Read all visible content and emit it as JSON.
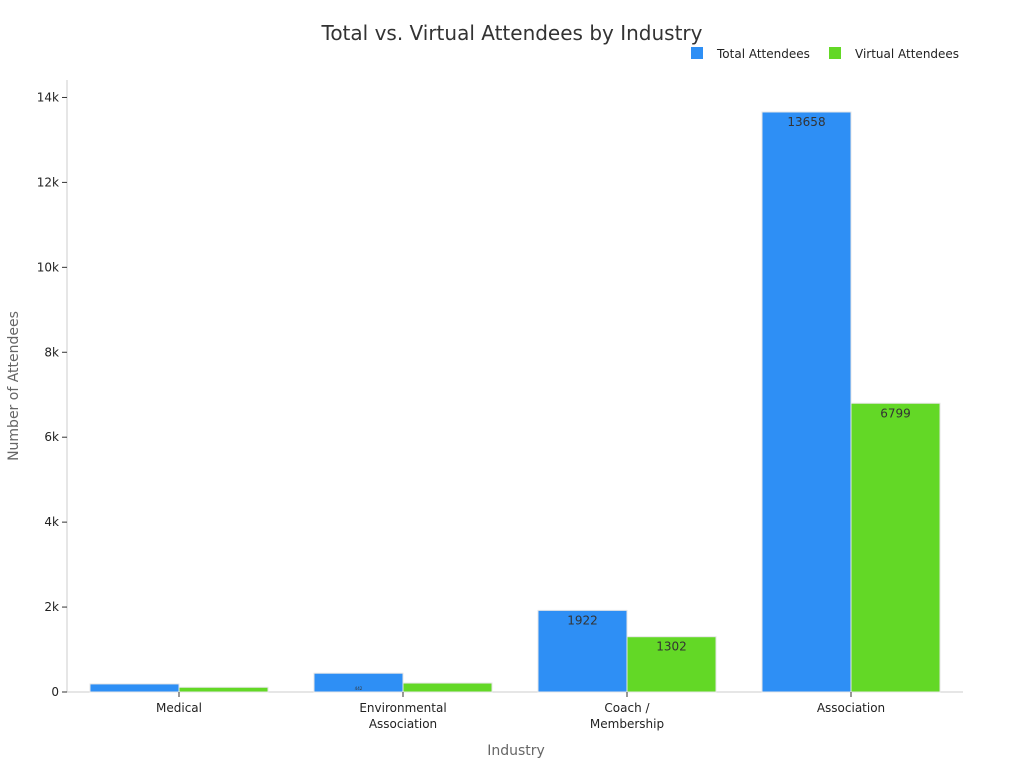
{
  "chart_data": {
    "type": "bar",
    "title": "Total vs. Virtual Attendees by Industry",
    "xlabel": "Industry",
    "ylabel": "Number of Attendees",
    "categories": [
      [
        "Medical"
      ],
      [
        "Environmental",
        "Association"
      ],
      [
        "Coach /",
        "Membership"
      ],
      [
        "Association"
      ]
    ],
    "series": [
      {
        "name": "Total Attendees",
        "color": "#2e8ff5",
        "values": [
          190,
          442,
          1922,
          13658
        ],
        "labels": [
          "",
          "442",
          "1922",
          "13658"
        ]
      },
      {
        "name": "Virtual Attendees",
        "color": "#63d826",
        "values": [
          111,
          211,
          1302,
          6799
        ],
        "labels": [
          "",
          "",
          "1302",
          "6799"
        ]
      }
    ],
    "ylim": [
      0,
      14000
    ],
    "yticks": [
      0,
      2000,
      4000,
      6000,
      8000,
      10000,
      12000,
      14000
    ],
    "ytick_labels": [
      "0",
      "2k",
      "4k",
      "6k",
      "8k",
      "10k",
      "12k",
      "14k"
    ],
    "legend_position": "top-right",
    "grid": false
  }
}
